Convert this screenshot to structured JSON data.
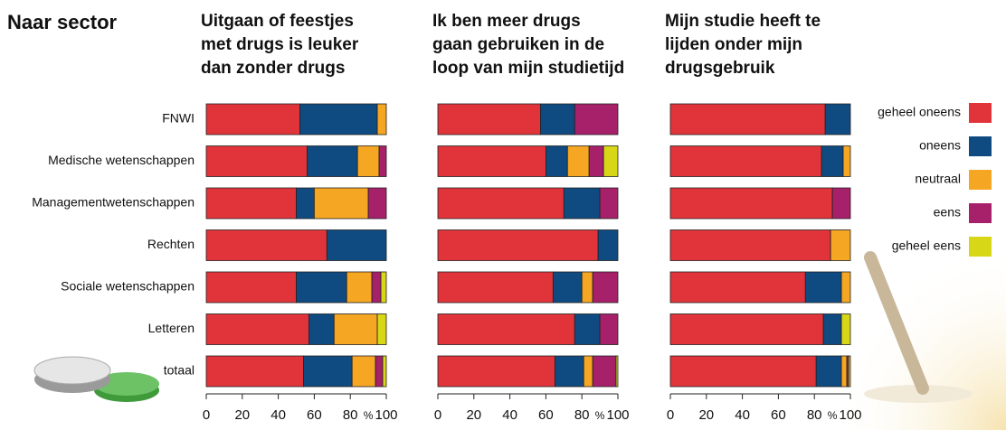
{
  "title": "Naar sector",
  "chart_data": [
    {
      "type": "bar",
      "orientation": "horizontal",
      "stacked": true,
      "title": [
        "Uitgaan of feestjes",
        "met drugs is leuker",
        "dan zonder drugs"
      ],
      "categories": [
        "FNWI",
        "Medische wetenschappen",
        "Managementwetenschappen",
        "Rechten",
        "Sociale wetenschappen",
        "Letteren",
        "totaal"
      ],
      "series": [
        {
          "name": "geheel oneens",
          "color": "#e0343a",
          "values": [
            52,
            56,
            50,
            67,
            50,
            57,
            54
          ]
        },
        {
          "name": "oneens",
          "color": "#0f4a80",
          "values": [
            43,
            28,
            10,
            33,
            28,
            14,
            27
          ]
        },
        {
          "name": "neutraal",
          "color": "#f5a623",
          "values": [
            5,
            12,
            30,
            0,
            14,
            24,
            13
          ]
        },
        {
          "name": "eens",
          "color": "#a6206a",
          "values": [
            0,
            4,
            10,
            0,
            5,
            0,
            4
          ]
        },
        {
          "name": "geheel eens",
          "color": "#d7d617",
          "values": [
            0,
            0,
            0,
            0,
            3,
            5,
            2
          ]
        }
      ],
      "x_label": "%",
      "xlim": [
        0,
        100
      ],
      "xticks": [
        0,
        20,
        40,
        60,
        80,
        100
      ]
    },
    {
      "type": "bar",
      "orientation": "horizontal",
      "stacked": true,
      "title": [
        "Ik ben meer drugs",
        "gaan gebruiken in de",
        "loop van mijn studietijd"
      ],
      "series": [
        {
          "values": [
            57,
            60,
            70,
            89,
            64,
            76,
            65
          ]
        },
        {
          "values": [
            19,
            12,
            20,
            11,
            16,
            14,
            16
          ]
        },
        {
          "values": [
            0,
            12,
            0,
            0,
            6,
            0,
            5
          ]
        },
        {
          "values": [
            24,
            8,
            10,
            0,
            14,
            10,
            13
          ]
        },
        {
          "values": [
            0,
            8,
            0,
            0,
            0,
            0,
            1
          ]
        }
      ],
      "x_label": "%",
      "xlim": [
        0,
        100
      ],
      "xticks": [
        0,
        20,
        40,
        60,
        80,
        100
      ]
    },
    {
      "type": "bar",
      "orientation": "horizontal",
      "stacked": true,
      "title": [
        "Mijn studie heeft te",
        "lijden onder mijn",
        "drugsgebruik"
      ],
      "series": [
        {
          "values": [
            86,
            84,
            90,
            89,
            75,
            85,
            81
          ]
        },
        {
          "values": [
            14,
            12,
            0,
            0,
            20,
            10,
            14
          ]
        },
        {
          "values": [
            0,
            4,
            0,
            11,
            5,
            0,
            3
          ]
        },
        {
          "values": [
            0,
            0,
            10,
            0,
            0,
            0,
            1
          ]
        },
        {
          "values": [
            0,
            0,
            0,
            0,
            0,
            5,
            1
          ]
        }
      ],
      "x_label": "%",
      "xlim": [
        0,
        100
      ],
      "xticks": [
        0,
        20,
        40,
        60,
        80,
        100
      ]
    }
  ]
}
